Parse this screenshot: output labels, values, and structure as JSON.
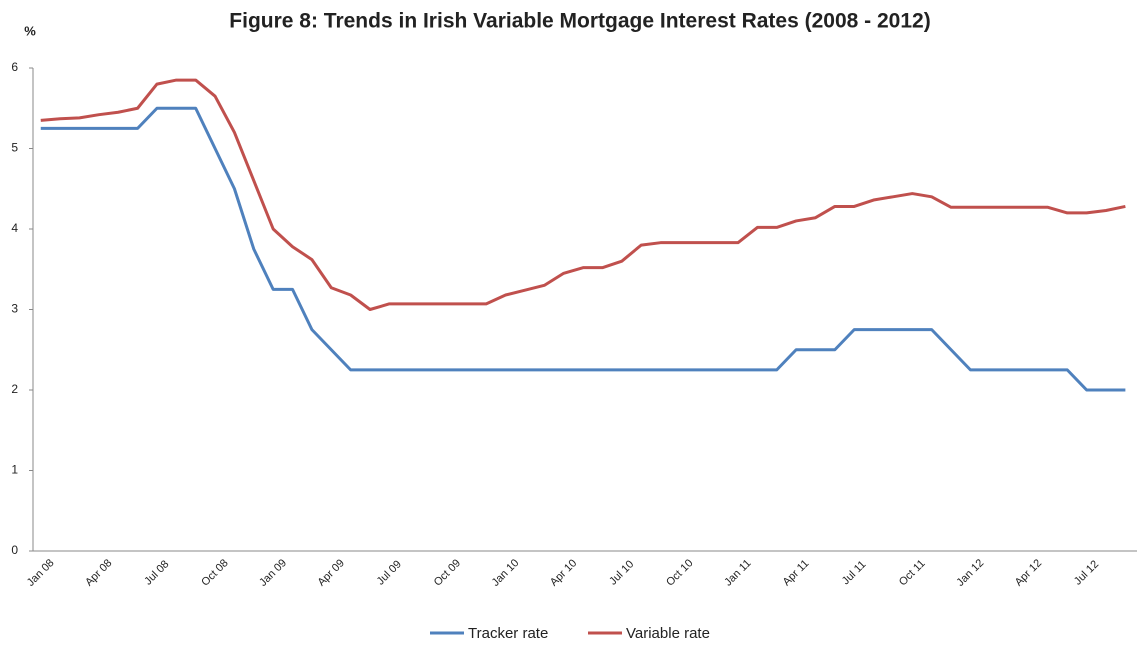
{
  "chart_data": {
    "type": "line",
    "title": "Figure 8: Trends in Irish Variable Mortgage Interest Rates (2008 - 2012)",
    "y_label": "%",
    "categories": [
      "Jan 08",
      null,
      null,
      "Apr 08",
      null,
      null,
      "Jul 08",
      null,
      null,
      "Oct 08",
      null,
      null,
      "Jan 09",
      null,
      null,
      "Apr 09",
      null,
      null,
      "Jul 09",
      null,
      null,
      "Oct 09",
      null,
      null,
      "Jan 10",
      null,
      null,
      "Apr 10",
      null,
      null,
      "Jul 10",
      null,
      null,
      "Oct 10",
      null,
      null,
      "Jan 11",
      null,
      null,
      "Apr 11",
      null,
      null,
      "Jul 11",
      null,
      null,
      "Oct 11",
      null,
      null,
      "Jan 12",
      null,
      null,
      "Apr 12",
      null,
      null,
      "Jul 12",
      null,
      null
    ],
    "series": [
      {
        "name": "Tracker rate",
        "color": "#4f81bd",
        "values": [
          5.25,
          5.25,
          5.25,
          5.25,
          5.25,
          5.25,
          5.5,
          5.5,
          5.5,
          5.0,
          4.5,
          3.75,
          3.25,
          3.25,
          2.75,
          2.5,
          2.25,
          2.25,
          2.25,
          2.25,
          2.25,
          2.25,
          2.25,
          2.25,
          2.25,
          2.25,
          2.25,
          2.25,
          2.25,
          2.25,
          2.25,
          2.25,
          2.25,
          2.25,
          2.25,
          2.25,
          2.25,
          2.25,
          2.25,
          2.5,
          2.5,
          2.5,
          2.75,
          2.75,
          2.75,
          2.75,
          2.75,
          2.5,
          2.25,
          2.25,
          2.25,
          2.25,
          2.25,
          2.25,
          2.0,
          2.0,
          2.0
        ]
      },
      {
        "name": "Variable rate",
        "color": "#c0504d",
        "values": [
          5.35,
          5.37,
          5.38,
          5.42,
          5.45,
          5.5,
          5.8,
          5.85,
          5.85,
          5.65,
          5.2,
          4.6,
          4.0,
          3.78,
          3.62,
          3.27,
          3.18,
          3.0,
          3.07,
          3.07,
          3.07,
          3.07,
          3.07,
          3.07,
          3.18,
          3.24,
          3.3,
          3.45,
          3.52,
          3.52,
          3.6,
          3.8,
          3.83,
          3.83,
          3.83,
          3.83,
          3.83,
          4.02,
          4.02,
          4.1,
          4.14,
          4.28,
          4.28,
          4.36,
          4.4,
          4.44,
          4.4,
          4.27,
          4.27,
          4.27,
          4.27,
          4.27,
          4.27,
          4.2,
          4.2,
          4.23,
          4.28
        ]
      }
    ],
    "ylim": [
      0,
      6
    ],
    "yticks": [
      0,
      1,
      2,
      3,
      4,
      5,
      6
    ],
    "grid": false,
    "legend": "bottom"
  }
}
